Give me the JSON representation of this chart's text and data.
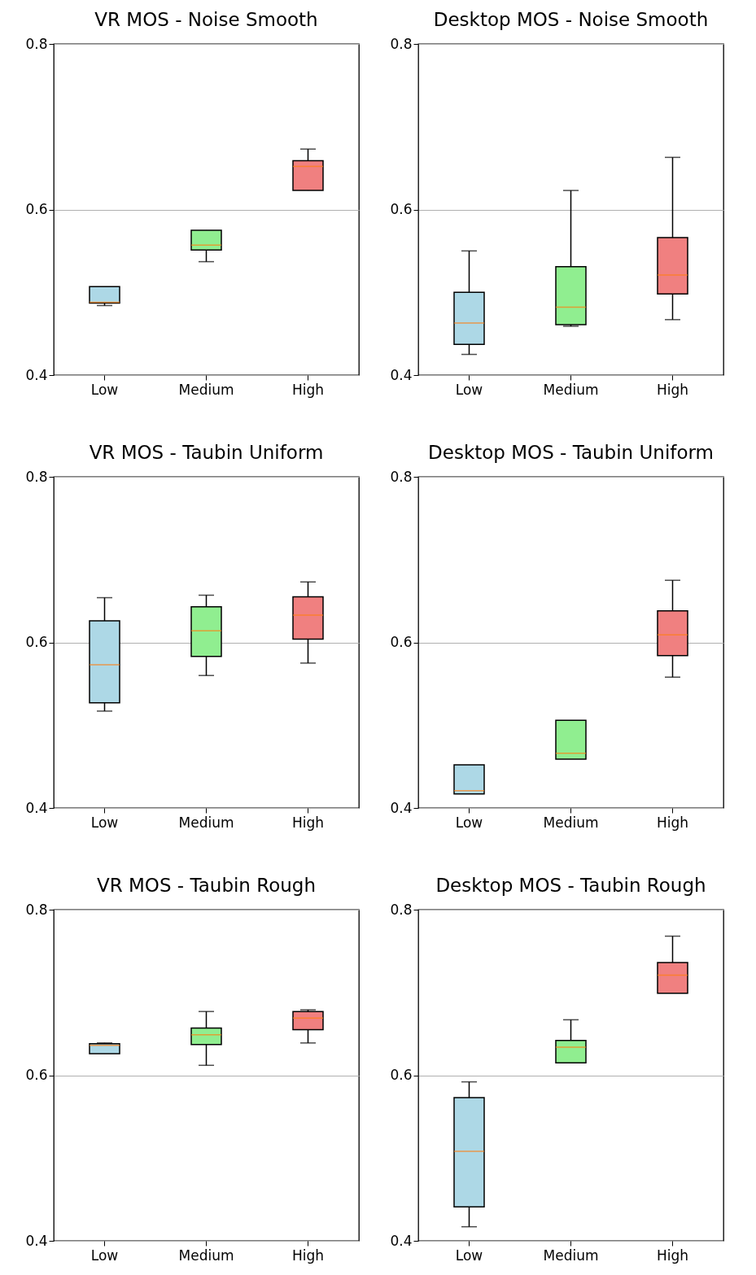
{
  "chart_data": [
    {
      "type": "box",
      "title": "VR MOS - Noise Smooth",
      "categories": [
        "Low",
        "Medium",
        "High"
      ],
      "colors": [
        "#add8e6",
        "#90ee90",
        "#f08080"
      ],
      "ylim": [
        0.4,
        0.8
      ],
      "yticks": [
        0.4,
        0.6,
        0.8
      ],
      "grid": "y",
      "boxes": [
        {
          "low": 0.484,
          "q1": 0.487,
          "median": 0.488,
          "q3": 0.507,
          "high": 0.507
        },
        {
          "low": 0.537,
          "q1": 0.551,
          "median": 0.557,
          "q3": 0.575,
          "high": 0.575
        },
        {
          "low": 0.623,
          "q1": 0.623,
          "median": 0.652,
          "q3": 0.659,
          "high": 0.673
        }
      ]
    },
    {
      "type": "box",
      "title": "Desktop MOS - Noise Smooth",
      "categories": [
        "Low",
        "Medium",
        "High"
      ],
      "colors": [
        "#add8e6",
        "#90ee90",
        "#f08080"
      ],
      "ylim": [
        0.4,
        0.8
      ],
      "yticks": [
        0.4,
        0.6,
        0.8
      ],
      "grid": "y",
      "boxes": [
        {
          "low": 0.425,
          "q1": 0.437,
          "median": 0.463,
          "q3": 0.5,
          "high": 0.55
        },
        {
          "low": 0.459,
          "q1": 0.461,
          "median": 0.482,
          "q3": 0.531,
          "high": 0.623
        },
        {
          "low": 0.467,
          "q1": 0.498,
          "median": 0.521,
          "q3": 0.566,
          "high": 0.663
        }
      ]
    },
    {
      "type": "box",
      "title": "VR MOS - Taubin Uniform",
      "categories": [
        "Low",
        "Medium",
        "High"
      ],
      "colors": [
        "#add8e6",
        "#90ee90",
        "#f08080"
      ],
      "ylim": [
        0.4,
        0.8
      ],
      "yticks": [
        0.4,
        0.6,
        0.8
      ],
      "grid": "y",
      "boxes": [
        {
          "low": 0.517,
          "q1": 0.527,
          "median": 0.573,
          "q3": 0.626,
          "high": 0.654
        },
        {
          "low": 0.56,
          "q1": 0.583,
          "median": 0.614,
          "q3": 0.643,
          "high": 0.657
        },
        {
          "low": 0.575,
          "q1": 0.604,
          "median": 0.633,
          "q3": 0.655,
          "high": 0.673
        }
      ]
    },
    {
      "type": "box",
      "title": "Desktop MOS - Taubin Uniform",
      "categories": [
        "Low",
        "Medium",
        "High"
      ],
      "colors": [
        "#add8e6",
        "#90ee90",
        "#f08080"
      ],
      "ylim": [
        0.4,
        0.8
      ],
      "yticks": [
        0.4,
        0.6,
        0.8
      ],
      "grid": "y",
      "boxes": [
        {
          "low": 0.417,
          "q1": 0.417,
          "median": 0.421,
          "q3": 0.452,
          "high": 0.452
        },
        {
          "low": 0.459,
          "q1": 0.459,
          "median": 0.466,
          "q3": 0.506,
          "high": 0.506
        },
        {
          "low": 0.558,
          "q1": 0.584,
          "median": 0.609,
          "q3": 0.638,
          "high": 0.675
        }
      ]
    },
    {
      "type": "box",
      "title": "VR MOS - Taubin Rough",
      "categories": [
        "Low",
        "Medium",
        "High"
      ],
      "colors": [
        "#add8e6",
        "#90ee90",
        "#f08080"
      ],
      "ylim": [
        0.4,
        0.8
      ],
      "yticks": [
        0.4,
        0.6,
        0.8
      ],
      "grid": "y",
      "boxes": [
        {
          "low": 0.626,
          "q1": 0.626,
          "median": 0.636,
          "q3": 0.638,
          "high": 0.639
        },
        {
          "low": 0.612,
          "q1": 0.637,
          "median": 0.649,
          "q3": 0.657,
          "high": 0.677
        },
        {
          "low": 0.639,
          "q1": 0.655,
          "median": 0.669,
          "q3": 0.677,
          "high": 0.679
        }
      ]
    },
    {
      "type": "box",
      "title": "Desktop MOS - Taubin Rough",
      "categories": [
        "Low",
        "Medium",
        "High"
      ],
      "colors": [
        "#add8e6",
        "#90ee90",
        "#f08080"
      ],
      "ylim": [
        0.4,
        0.8
      ],
      "yticks": [
        0.4,
        0.6,
        0.8
      ],
      "grid": "y",
      "boxes": [
        {
          "low": 0.417,
          "q1": 0.441,
          "median": 0.508,
          "q3": 0.573,
          "high": 0.592
        },
        {
          "low": 0.615,
          "q1": 0.615,
          "median": 0.634,
          "q3": 0.642,
          "high": 0.667
        },
        {
          "low": 0.699,
          "q1": 0.699,
          "median": 0.721,
          "q3": 0.736,
          "high": 0.768
        }
      ]
    }
  ]
}
